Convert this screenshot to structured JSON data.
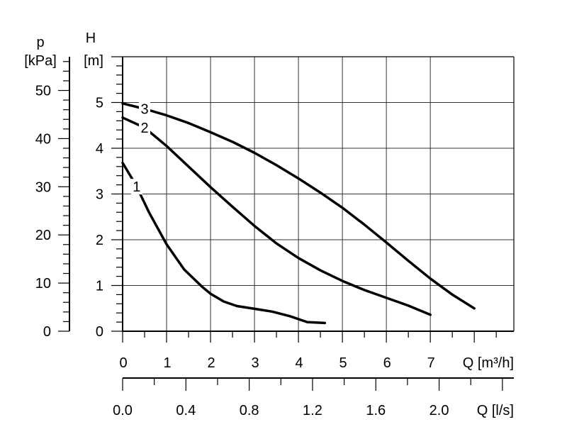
{
  "chart_data": {
    "type": "line",
    "axes": {
      "pressure": {
        "label_symbol": "p",
        "label_unit": "[kPa]",
        "range": [
          0,
          57
        ],
        "major_ticks": [
          0,
          10,
          20,
          30,
          40,
          50
        ],
        "tick_labels": [
          "0",
          "10",
          "20",
          "30",
          "40",
          "50"
        ]
      },
      "head": {
        "label_symbol": "H",
        "label_unit": "[m]",
        "range": [
          0,
          6
        ],
        "major_ticks": [
          0,
          1,
          2,
          3,
          4,
          5
        ],
        "tick_labels": [
          "0",
          "1",
          "2",
          "3",
          "4",
          "5"
        ]
      },
      "flow_m3h": {
        "label": "Q [m³/h]",
        "range": [
          0,
          8.9
        ],
        "major_ticks": [
          0,
          1,
          2,
          3,
          4,
          5,
          6,
          7
        ],
        "tick_labels": [
          "0",
          "1",
          "2",
          "3",
          "4",
          "5",
          "6",
          "7"
        ]
      },
      "flow_ls": {
        "label": "Q [l/s]",
        "major_ticks": [
          0,
          0.4,
          0.8,
          1.2,
          1.6,
          2.0
        ],
        "tick_labels": [
          "0.0",
          "0.4",
          "0.8",
          "1.2",
          "1.6",
          "2.0"
        ]
      }
    },
    "grid": true,
    "series": [
      {
        "name": "1",
        "x": [
          0,
          0.3,
          0.6,
          1.0,
          1.4,
          1.8,
          2.0,
          2.3,
          2.6,
          3.0,
          3.4,
          3.8,
          4.2,
          4.6
        ],
        "y": [
          3.68,
          3.2,
          2.6,
          1.9,
          1.35,
          0.98,
          0.82,
          0.65,
          0.55,
          0.49,
          0.43,
          0.33,
          0.2,
          0.18
        ]
      },
      {
        "name": "2",
        "x": [
          0,
          0.5,
          1.0,
          1.5,
          2.0,
          2.5,
          3.0,
          3.5,
          4.0,
          4.5,
          5.0,
          5.5,
          6.0,
          6.5,
          7.0
        ],
        "y": [
          4.67,
          4.45,
          4.05,
          3.6,
          3.15,
          2.72,
          2.3,
          1.92,
          1.6,
          1.33,
          1.1,
          0.9,
          0.73,
          0.56,
          0.36
        ]
      },
      {
        "name": "3",
        "x": [
          0,
          0.5,
          1.0,
          1.5,
          2.0,
          2.5,
          3.0,
          3.5,
          4.0,
          4.5,
          5.0,
          5.5,
          6.0,
          6.5,
          7.0,
          7.5,
          8.0
        ],
        "y": [
          4.98,
          4.86,
          4.72,
          4.55,
          4.35,
          4.14,
          3.9,
          3.63,
          3.34,
          3.03,
          2.7,
          2.33,
          1.94,
          1.54,
          1.15,
          0.8,
          0.5
        ]
      }
    ]
  }
}
